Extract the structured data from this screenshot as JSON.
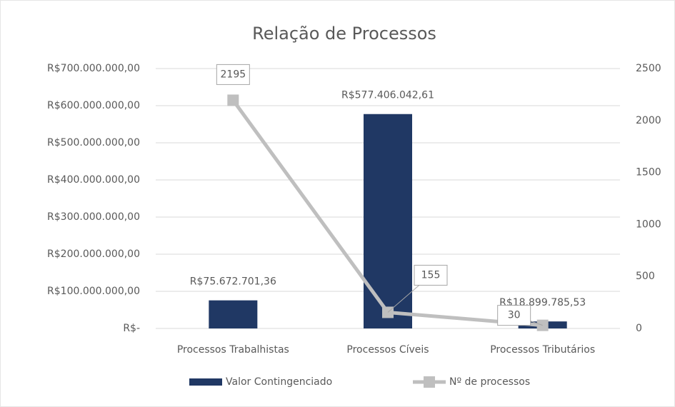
{
  "chart_data": {
    "type": "combo",
    "title": "Relação de Processos",
    "categories": [
      "Processos Trabalhistas",
      "Processos Cíveis",
      "Processos Tributários"
    ],
    "series": [
      {
        "name": "Valor Contingenciado",
        "type": "bar",
        "color": "#203864",
        "values": [
          75672701.36,
          577406042.61,
          18899785.53
        ],
        "value_labels": [
          "R$75.672.701,36",
          "R$577.406.042,61",
          "R$18.899.785,53"
        ]
      },
      {
        "name": "Nº de processos",
        "type": "line",
        "axis": "y2",
        "color": "#bfbfbf",
        "values": [
          2195,
          155,
          30
        ]
      }
    ],
    "ylim": [
      0,
      700000000
    ],
    "yticks": [
      {
        "value": 0,
        "label": "R$-"
      },
      {
        "value": 100000000,
        "label": "R$100.000.000,00"
      },
      {
        "value": 200000000,
        "label": "R$200.000.000,00"
      },
      {
        "value": 300000000,
        "label": "R$300.000.000,00"
      },
      {
        "value": 400000000,
        "label": "R$400.000.000,00"
      },
      {
        "value": 500000000,
        "label": "R$500.000.000,00"
      },
      {
        "value": 600000000,
        "label": "R$600.000.000,00"
      },
      {
        "value": 700000000,
        "label": "R$700.000.000,00"
      }
    ],
    "y2lim": [
      0,
      2500
    ],
    "y2ticks": [
      0,
      500,
      1000,
      1500,
      2000,
      2500
    ],
    "grid": true,
    "legend": "bottom"
  }
}
